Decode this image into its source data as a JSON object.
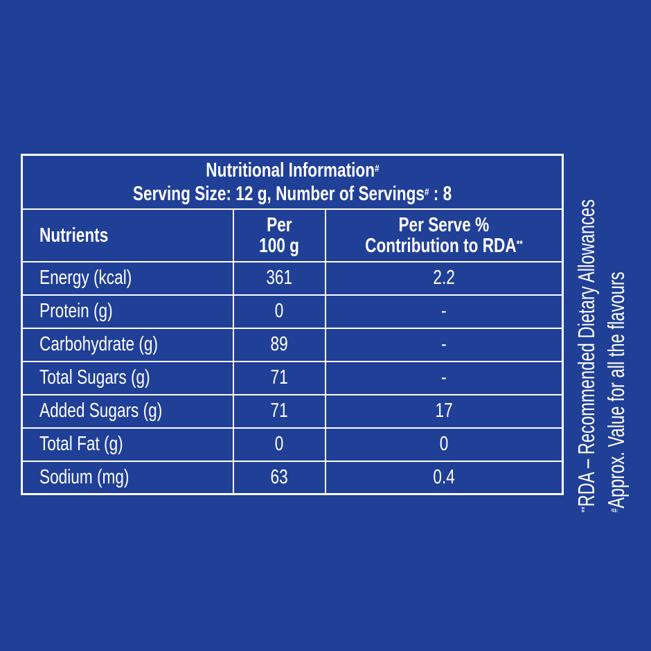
{
  "title": "Nutritional Information",
  "title_mark": "#",
  "serving": "Serving Size: 12 g, Number of Servings",
  "serving_mark": "#",
  "serving_count": " : 8",
  "headers": {
    "nutrients": "Nutrients",
    "per100_line1": "Per",
    "per100_line2": "100 g",
    "rda_line1": "Per Serve %",
    "rda_line2": "Contribution to RDA",
    "rda_mark": "**"
  },
  "rows": [
    {
      "name": "Energy (kcal)",
      "per100": "361",
      "rda": "2.2"
    },
    {
      "name": "Protein (g)",
      "per100": "0",
      "rda": "-"
    },
    {
      "name": "Carbohydrate (g)",
      "per100": "89",
      "rda": "-"
    },
    {
      "name": "Total Sugars (g)",
      "per100": "71",
      "rda": "-"
    },
    {
      "name": "Added Sugars (g)",
      "per100": "71",
      "rda": "17"
    },
    {
      "name": "Total Fat (g)",
      "per100": "0",
      "rda": "0"
    },
    {
      "name": "Sodium (mg)",
      "per100": "63",
      "rda": "0.4"
    }
  ],
  "footnotes": {
    "rda_mark": "**",
    "rda": "RDA – Recommended Dietary Allowances",
    "approx_mark": "#",
    "approx": "Approx. Value for all the flavours"
  },
  "colors": {
    "background": "#203f97",
    "text": "#ffffff"
  }
}
